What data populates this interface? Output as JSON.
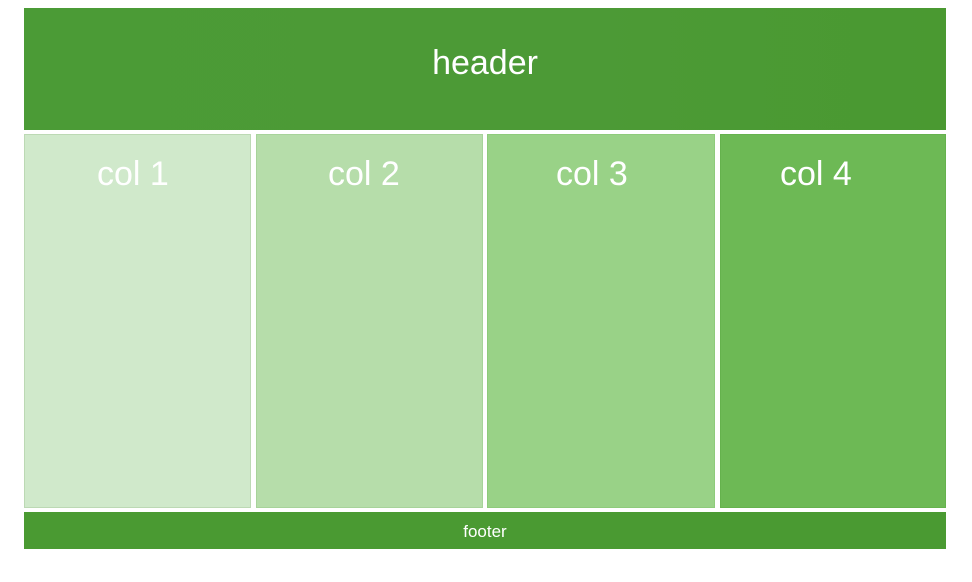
{
  "header": {
    "title": "header"
  },
  "columns": [
    {
      "label": "col 1"
    },
    {
      "label": "col 2"
    },
    {
      "label": "col 3"
    },
    {
      "label": "col 4"
    }
  ],
  "footer": {
    "text": "footer"
  },
  "colors": {
    "header_bg": "#4b9b36",
    "col1_bg": "#d0e9cb",
    "col2_bg": "#b6ddaa",
    "col3_bg": "#99d287",
    "col4_bg": "#6db955",
    "footer_bg": "#4a9a32",
    "text": "#ffffff"
  }
}
